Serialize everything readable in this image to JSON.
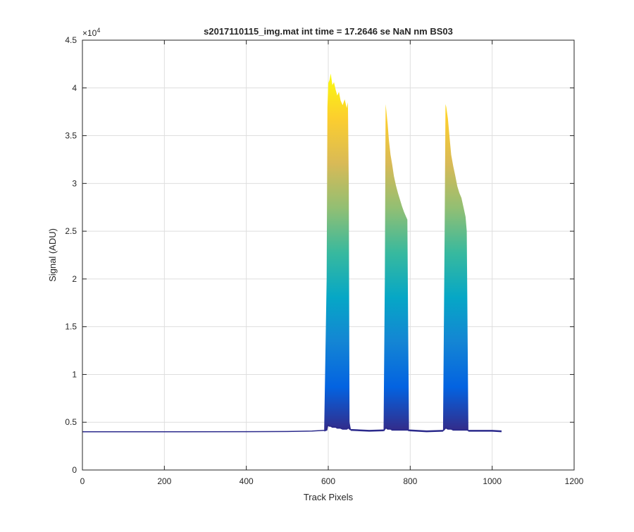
{
  "chart_data": {
    "type": "area",
    "title": "s2017110115_img.mat int time = 17.2646 se  NaN nm BS03",
    "xlabel": "Track Pixels",
    "ylabel": "Signal (ADU)",
    "xlim": [
      0,
      1200
    ],
    "ylim": [
      0,
      45000
    ],
    "x_ticks": [
      0,
      200,
      400,
      600,
      800,
      1000,
      1200
    ],
    "x_tick_labels": [
      "0",
      "200",
      "400",
      "600",
      "800",
      "1000",
      "1200"
    ],
    "y_ticks": [
      0,
      5000,
      10000,
      15000,
      20000,
      25000,
      30000,
      35000,
      40000,
      45000
    ],
    "y_tick_labels": [
      "0",
      "0.5",
      "1",
      "1.5",
      "2",
      "2.5",
      "3",
      "3.5",
      "4",
      "4.5"
    ],
    "y_exponent_label": "×10",
    "y_exponent_power": "4",
    "grid": true,
    "colormap": "parula",
    "colormap_stops": [
      "#352a87",
      "#0363e1",
      "#1485d4",
      "#06a7c6",
      "#38b99e",
      "#92bf73",
      "#d9ba56",
      "#fcce2e",
      "#f9fb0e"
    ],
    "baseline_color": "#2b2a8c",
    "baseline": 4000,
    "peaks": [
      {
        "x": [
          590,
          596,
          598,
          600,
          603,
          606,
          610,
          614,
          618,
          622,
          626,
          630,
          635,
          640,
          645,
          648,
          650,
          652,
          655
        ],
        "top": [
          4300,
          20000,
          38000,
          40500,
          40800,
          41500,
          40300,
          40600,
          39800,
          39200,
          39600,
          38700,
          38200,
          38800,
          37900,
          38500,
          30000,
          5000,
          4300
        ],
        "bottom": [
          4100,
          4200,
          4600,
          4700,
          4600,
          4600,
          4500,
          4500,
          4500,
          4400,
          4400,
          4400,
          4300,
          4300,
          4300,
          4400,
          4400,
          4300,
          4200
        ]
      },
      {
        "x": [
          735,
          738,
          740,
          742,
          745,
          748,
          752,
          756,
          760,
          765,
          770,
          775,
          780,
          785,
          790,
          793,
          795,
          797
        ],
        "top": [
          4200,
          20000,
          38300,
          37500,
          36200,
          34500,
          33000,
          32000,
          30800,
          29800,
          29000,
          28300,
          27600,
          27000,
          26500,
          26200,
          15000,
          4300
        ],
        "bottom": [
          4100,
          4300,
          4400,
          4400,
          4300,
          4300,
          4300,
          4200,
          4200,
          4200,
          4200,
          4200,
          4200,
          4200,
          4200,
          4200,
          4200,
          4100
        ]
      },
      {
        "x": [
          880,
          884,
          886,
          888,
          892,
          896,
          900,
          905,
          910,
          915,
          920,
          925,
          930,
          935,
          938,
          940,
          942
        ],
        "top": [
          4200,
          25000,
          38300,
          38000,
          36800,
          34800,
          33000,
          31800,
          30800,
          29700,
          29000,
          28500,
          27500,
          26500,
          25000,
          14000,
          4300
        ],
        "bottom": [
          4100,
          4300,
          4400,
          4400,
          4300,
          4300,
          4300,
          4200,
          4200,
          4200,
          4200,
          4200,
          4200,
          4200,
          4200,
          4200,
          4100
        ]
      }
    ],
    "between_gaps": [
      {
        "x": [
          655,
          700,
          735
        ],
        "y": [
          4200,
          4100,
          4150
        ]
      },
      {
        "x": [
          797,
          840,
          880
        ],
        "y": [
          4150,
          4050,
          4100
        ]
      },
      {
        "x": [
          942,
          1000,
          1023
        ],
        "y": [
          4100,
          4100,
          4050
        ]
      }
    ],
    "baseline_series": {
      "x": [
        0,
        200,
        400,
        500,
        560,
        590
      ],
      "y": [
        4000,
        4000,
        4010,
        4030,
        4080,
        4150
      ]
    }
  }
}
